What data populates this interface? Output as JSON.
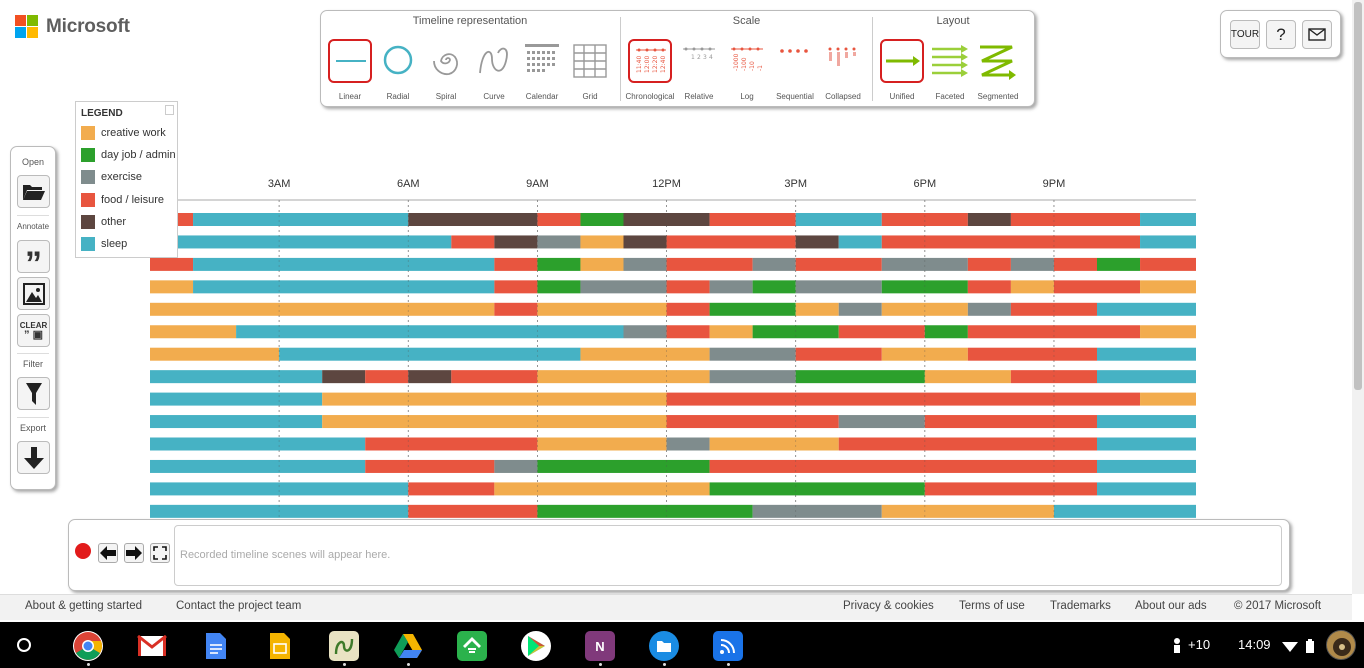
{
  "brand": {
    "name": "Microsoft",
    "logo_colors": [
      "#f25022",
      "#7fba00",
      "#00a4ef",
      "#ffb900"
    ]
  },
  "toolbar": {
    "representation": {
      "title": "Timeline representation",
      "items": [
        {
          "label": "Linear",
          "icon": "linear-icon",
          "selected": true
        },
        {
          "label": "Radial",
          "icon": "radial-icon",
          "selected": false
        },
        {
          "label": "Spiral",
          "icon": "spiral-icon",
          "selected": false
        },
        {
          "label": "Curve",
          "icon": "curve-icon",
          "selected": false
        },
        {
          "label": "Calendar",
          "icon": "calendar-icon",
          "selected": false
        },
        {
          "label": "Grid",
          "icon": "grid-icon",
          "selected": false
        }
      ]
    },
    "scale": {
      "title": "Scale",
      "items": [
        {
          "label": "Chronological",
          "icon": "chronological-icon",
          "selected": true
        },
        {
          "label": "Relative",
          "icon": "relative-icon",
          "selected": false
        },
        {
          "label": "Log",
          "icon": "log-icon",
          "selected": false
        },
        {
          "label": "Sequential",
          "icon": "sequential-icon",
          "selected": false
        },
        {
          "label": "Collapsed",
          "icon": "collapsed-icon",
          "selected": false
        }
      ]
    },
    "layout": {
      "title": "Layout",
      "items": [
        {
          "label": "Unified",
          "icon": "unified-icon",
          "selected": true
        },
        {
          "label": "Faceted",
          "icon": "faceted-icon",
          "selected": false
        },
        {
          "label": "Segmented",
          "icon": "segmented-icon",
          "selected": false
        }
      ]
    }
  },
  "topright": {
    "tour_label": "TOUR",
    "help_label": "?",
    "mail_icon": "mail-icon"
  },
  "legend": {
    "title": "LEGEND",
    "items": [
      {
        "label": "creative work",
        "color": "#f2ac4e"
      },
      {
        "label": "day job / admin",
        "color": "#2ca02c"
      },
      {
        "label": "exercise",
        "color": "#7f8c8d"
      },
      {
        "label": "food / leisure",
        "color": "#e8553f"
      },
      {
        "label": "other",
        "color": "#5d4640"
      },
      {
        "label": "sleep",
        "color": "#46b2c4"
      }
    ]
  },
  "leftpanel": {
    "open_label": "Open",
    "annotate_label": "Annotate",
    "clear_label": "CLEAR",
    "filter_label": "Filter",
    "export_label": "Export"
  },
  "chart_data": {
    "type": "timeline",
    "axis_labels": [
      "3AM",
      "6AM",
      "9AM",
      "12PM",
      "3PM",
      "6PM",
      "9PM"
    ],
    "axis_hours": [
      3,
      6,
      9,
      12,
      15,
      18,
      21
    ],
    "domain_hours": [
      0,
      24.3
    ],
    "category_colors": {
      "creative work": "#f2ac4e",
      "day job / admin": "#2ca02c",
      "exercise": "#7f8c8d",
      "food / leisure": "#e8553f",
      "other": "#5d4640",
      "sleep": "#46b2c4"
    },
    "rows": [
      [
        [
          0,
          1,
          "food / leisure"
        ],
        [
          1,
          6,
          "sleep"
        ],
        [
          6,
          9,
          "other"
        ],
        [
          9,
          10,
          "food / leisure"
        ],
        [
          10,
          11,
          "day job / admin"
        ],
        [
          11,
          13,
          "other"
        ],
        [
          13,
          15,
          "food / leisure"
        ],
        [
          15,
          17,
          "sleep"
        ],
        [
          17,
          19,
          "food / leisure"
        ],
        [
          19,
          20,
          "other"
        ],
        [
          20,
          23,
          "food / leisure"
        ],
        [
          23,
          24.3,
          "sleep"
        ]
      ],
      [
        [
          0,
          7,
          "sleep"
        ],
        [
          7,
          8,
          "food / leisure"
        ],
        [
          8,
          9,
          "other"
        ],
        [
          9,
          10,
          "exercise"
        ],
        [
          10,
          11,
          "creative work"
        ],
        [
          11,
          12,
          "other"
        ],
        [
          12,
          15,
          "food / leisure"
        ],
        [
          15,
          16,
          "other"
        ],
        [
          16,
          17,
          "sleep"
        ],
        [
          17,
          23,
          "food / leisure"
        ],
        [
          23,
          24.3,
          "sleep"
        ]
      ],
      [
        [
          0,
          1,
          "food / leisure"
        ],
        [
          1,
          8,
          "sleep"
        ],
        [
          8,
          9,
          "food / leisure"
        ],
        [
          9,
          10,
          "day job / admin"
        ],
        [
          10,
          11,
          "creative work"
        ],
        [
          11,
          12,
          "exercise"
        ],
        [
          12,
          14,
          "food / leisure"
        ],
        [
          14,
          15,
          "exercise"
        ],
        [
          15,
          17,
          "food / leisure"
        ],
        [
          17,
          19,
          "exercise"
        ],
        [
          19,
          20,
          "food / leisure"
        ],
        [
          20,
          21,
          "exercise"
        ],
        [
          21,
          22,
          "food / leisure"
        ],
        [
          22,
          23,
          "day job / admin"
        ],
        [
          23,
          24.3,
          "food / leisure"
        ]
      ],
      [
        [
          0,
          1,
          "creative work"
        ],
        [
          1,
          8,
          "sleep"
        ],
        [
          8,
          9,
          "food / leisure"
        ],
        [
          9,
          10,
          "day job / admin"
        ],
        [
          10,
          12,
          "exercise"
        ],
        [
          12,
          13,
          "food / leisure"
        ],
        [
          13,
          14,
          "exercise"
        ],
        [
          14,
          15,
          "day job / admin"
        ],
        [
          15,
          17,
          "exercise"
        ],
        [
          17,
          19,
          "day job / admin"
        ],
        [
          19,
          20,
          "food / leisure"
        ],
        [
          20,
          21,
          "creative work"
        ],
        [
          21,
          23,
          "food / leisure"
        ],
        [
          23,
          24.3,
          "creative work"
        ]
      ],
      [
        [
          0,
          8,
          "creative work"
        ],
        [
          8,
          9,
          "food / leisure"
        ],
        [
          9,
          12,
          "creative work"
        ],
        [
          12,
          13,
          "food / leisure"
        ],
        [
          13,
          15,
          "day job / admin"
        ],
        [
          15,
          16,
          "creative work"
        ],
        [
          16,
          17,
          "exercise"
        ],
        [
          17,
          19,
          "creative work"
        ],
        [
          19,
          20,
          "exercise"
        ],
        [
          20,
          22,
          "food / leisure"
        ],
        [
          22,
          24.3,
          "sleep"
        ]
      ],
      [
        [
          0,
          2,
          "creative work"
        ],
        [
          2,
          11,
          "sleep"
        ],
        [
          11,
          12,
          "exercise"
        ],
        [
          12,
          13,
          "food / leisure"
        ],
        [
          13,
          14,
          "creative work"
        ],
        [
          14,
          16,
          "day job / admin"
        ],
        [
          16,
          18,
          "food / leisure"
        ],
        [
          18,
          19,
          "day job / admin"
        ],
        [
          19,
          23,
          "food / leisure"
        ],
        [
          23,
          24.3,
          "creative work"
        ]
      ],
      [
        [
          0,
          3,
          "creative work"
        ],
        [
          3,
          10,
          "sleep"
        ],
        [
          10,
          13,
          "creative work"
        ],
        [
          13,
          15,
          "exercise"
        ],
        [
          15,
          17,
          "food / leisure"
        ],
        [
          17,
          19,
          "creative work"
        ],
        [
          19,
          22,
          "food / leisure"
        ],
        [
          22,
          24.3,
          "sleep"
        ]
      ],
      [
        [
          0,
          4,
          "sleep"
        ],
        [
          4,
          5,
          "other"
        ],
        [
          5,
          6,
          "food / leisure"
        ],
        [
          6,
          7,
          "other"
        ],
        [
          7,
          9,
          "food / leisure"
        ],
        [
          9,
          13,
          "creative work"
        ],
        [
          13,
          15,
          "exercise"
        ],
        [
          15,
          18,
          "day job / admin"
        ],
        [
          18,
          20,
          "creative work"
        ],
        [
          20,
          22,
          "food / leisure"
        ],
        [
          22,
          24.3,
          "sleep"
        ]
      ],
      [
        [
          0,
          4,
          "sleep"
        ],
        [
          4,
          12,
          "creative work"
        ],
        [
          12,
          23,
          "food / leisure"
        ],
        [
          23,
          24.3,
          "creative work"
        ]
      ],
      [
        [
          0,
          4,
          "sleep"
        ],
        [
          4,
          12,
          "creative work"
        ],
        [
          12,
          16,
          "food / leisure"
        ],
        [
          16,
          18,
          "exercise"
        ],
        [
          18,
          22,
          "food / leisure"
        ],
        [
          22,
          24.3,
          "sleep"
        ]
      ],
      [
        [
          0,
          5,
          "sleep"
        ],
        [
          5,
          9,
          "food / leisure"
        ],
        [
          9,
          12,
          "creative work"
        ],
        [
          12,
          13,
          "exercise"
        ],
        [
          13,
          16,
          "creative work"
        ],
        [
          16,
          22,
          "food / leisure"
        ],
        [
          22,
          24.3,
          "sleep"
        ]
      ],
      [
        [
          0,
          5,
          "sleep"
        ],
        [
          5,
          8,
          "food / leisure"
        ],
        [
          8,
          9,
          "exercise"
        ],
        [
          9,
          13,
          "day job / admin"
        ],
        [
          13,
          22,
          "food / leisure"
        ],
        [
          22,
          24.3,
          "sleep"
        ]
      ],
      [
        [
          0,
          6,
          "sleep"
        ],
        [
          6,
          8,
          "food / leisure"
        ],
        [
          8,
          13,
          "creative work"
        ],
        [
          13,
          18,
          "day job / admin"
        ],
        [
          18,
          22,
          "food / leisure"
        ],
        [
          22,
          24.3,
          "sleep"
        ]
      ],
      [
        [
          0,
          6,
          "sleep"
        ],
        [
          6,
          9,
          "food / leisure"
        ],
        [
          9,
          14,
          "day job / admin"
        ],
        [
          14,
          17,
          "exercise"
        ],
        [
          17,
          21,
          "creative work"
        ],
        [
          21,
          24.3,
          "sleep"
        ]
      ]
    ]
  },
  "recorder": {
    "placeholder": "Recorded timeline scenes will appear here."
  },
  "footer": {
    "about": "About & getting started",
    "contact": "Contact the project team",
    "privacy": "Privacy & cookies",
    "terms": "Terms of use",
    "trademarks": "Trademarks",
    "ads": "About our ads",
    "copyright": "© 2017 Microsoft"
  },
  "shelf": {
    "apps": [
      {
        "name": "chrome-icon",
        "color": "#e8453c"
      },
      {
        "name": "gmail-icon",
        "color": "#ffffff"
      },
      {
        "name": "docs-icon",
        "color": "#4285f4"
      },
      {
        "name": "slides-icon",
        "color": "#f4b400"
      },
      {
        "name": "timeline-app-icon",
        "color": "#4a7a3a"
      },
      {
        "name": "drive-icon",
        "color": "#0f9d58"
      },
      {
        "name": "feedly-icon",
        "color": "#2bb24c"
      },
      {
        "name": "play-store-icon",
        "color": "#ffffff"
      },
      {
        "name": "onenote-icon",
        "color": "#80397b"
      },
      {
        "name": "files-icon",
        "color": "#1a8ce3"
      },
      {
        "name": "cast-icon",
        "color": "#1a73e8"
      }
    ],
    "notification_count": "+10",
    "time": "14:09"
  }
}
